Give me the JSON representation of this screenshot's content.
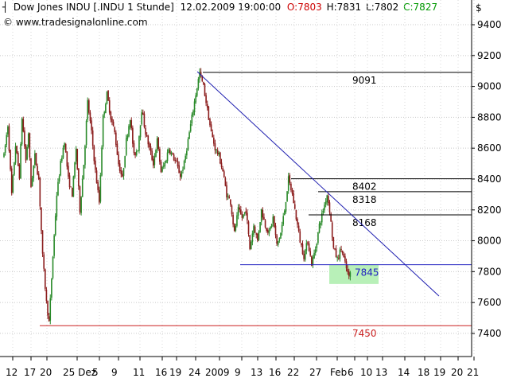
{
  "header": {
    "instrument": "Dow Jones INDU [.INDU  1 Stunde]",
    "date": "12.02.2009 19:00:00",
    "open": "O:7803",
    "high": "H:7831",
    "low": "L:7802",
    "close": "C:7827",
    "url": "© www.tradesignalonline.com",
    "currency": "$"
  },
  "colors": {
    "bull": "#2a8a2a",
    "bear": "#8b1c1c",
    "trendline": "#1f1fb0",
    "support": "#2020c0",
    "low_line": "#cc2222",
    "resistance": "#000000",
    "highlight": "#b8f0b8",
    "open_text": "#cc0000",
    "close_text": "#009900"
  },
  "chart_data": {
    "type": "candlestick",
    "ylim": [
      7250,
      9560
    ],
    "y_ticks": [
      7400,
      7600,
      7800,
      8000,
      8200,
      8400,
      8600,
      8800,
      9000,
      9200,
      9400
    ],
    "y_tick_labels": [
      "7400",
      "7600",
      "7800",
      "8000",
      "8200",
      "8400",
      "8600",
      "8800",
      "9000",
      "9200",
      "9400"
    ],
    "x_tick_labels": [
      "12",
      "17",
      "20",
      "25 Dez",
      "5",
      "9",
      "11",
      "16",
      "19",
      "24",
      "2009",
      "9",
      "13",
      "16",
      "22",
      "27",
      "Feb",
      "6",
      "10",
      "13",
      "14",
      "18",
      "19",
      "20",
      "21"
    ],
    "horizontal_levels": [
      {
        "label": "9091",
        "value": 9091
      },
      {
        "label": "8402",
        "value": 8402
      },
      {
        "label": "8318",
        "value": 8318
      },
      {
        "label": "8168",
        "value": 8168
      },
      {
        "label": "7845",
        "value": 7845
      },
      {
        "label": "7450",
        "value": 7450
      }
    ],
    "price_path": [
      [
        0,
        8550
      ],
      [
        3,
        8750
      ],
      [
        6,
        8300
      ],
      [
        9,
        8620
      ],
      [
        12,
        8420
      ],
      [
        14,
        8800
      ],
      [
        17,
        8520
      ],
      [
        19,
        8700
      ],
      [
        21,
        8350
      ],
      [
        24,
        8550
      ],
      [
        27,
        8400
      ],
      [
        30,
        7900
      ],
      [
        33,
        7600
      ],
      [
        35,
        7470
      ],
      [
        38,
        7900
      ],
      [
        41,
        8300
      ],
      [
        44,
        8500
      ],
      [
        47,
        8650
      ],
      [
        50,
        8400
      ],
      [
        53,
        8300
      ],
      [
        56,
        8600
      ],
      [
        59,
        8200
      ],
      [
        62,
        8500
      ],
      [
        65,
        8900
      ],
      [
        68,
        8700
      ],
      [
        71,
        8450
      ],
      [
        74,
        8250
      ],
      [
        77,
        8800
      ],
      [
        80,
        8950
      ],
      [
        83,
        8800
      ],
      [
        86,
        8700
      ],
      [
        89,
        8500
      ],
      [
        92,
        8400
      ],
      [
        95,
        8650
      ],
      [
        98,
        8800
      ],
      [
        101,
        8550
      ],
      [
        104,
        8600
      ],
      [
        107,
        8850
      ],
      [
        110,
        8700
      ],
      [
        113,
        8600
      ],
      [
        116,
        8500
      ],
      [
        119,
        8650
      ],
      [
        122,
        8450
      ],
      [
        125,
        8500
      ],
      [
        128,
        8600
      ],
      [
        131,
        8550
      ],
      [
        134,
        8500
      ],
      [
        137,
        8420
      ],
      [
        140,
        8500
      ],
      [
        143,
        8650
      ],
      [
        146,
        8800
      ],
      [
        149,
        8950
      ],
      [
        152,
        9090
      ],
      [
        155,
        9000
      ],
      [
        158,
        8850
      ],
      [
        161,
        8700
      ],
      [
        164,
        8600
      ],
      [
        167,
        8550
      ],
      [
        170,
        8450
      ],
      [
        173,
        8300
      ],
      [
        176,
        8250
      ],
      [
        179,
        8050
      ],
      [
        182,
        8200
      ],
      [
        185,
        8150
      ],
      [
        188,
        8200
      ],
      [
        191,
        7950
      ],
      [
        194,
        8100
      ],
      [
        197,
        8000
      ],
      [
        200,
        8200
      ],
      [
        203,
        8100
      ],
      [
        206,
        8050
      ],
      [
        209,
        8150
      ],
      [
        212,
        7970
      ],
      [
        215,
        8050
      ],
      [
        218,
        8200
      ],
      [
        221,
        8400
      ],
      [
        224,
        8300
      ],
      [
        227,
        8150
      ],
      [
        230,
        8000
      ],
      [
        233,
        7900
      ],
      [
        236,
        8000
      ],
      [
        239,
        7850
      ],
      [
        242,
        7950
      ],
      [
        245,
        8100
      ],
      [
        248,
        8200
      ],
      [
        251,
        8300
      ],
      [
        253,
        8200
      ],
      [
        256,
        7950
      ],
      [
        259,
        7880
      ],
      [
        262,
        7950
      ],
      [
        265,
        7850
      ],
      [
        268,
        7760
      ],
      [
        270,
        7827
      ]
    ]
  }
}
